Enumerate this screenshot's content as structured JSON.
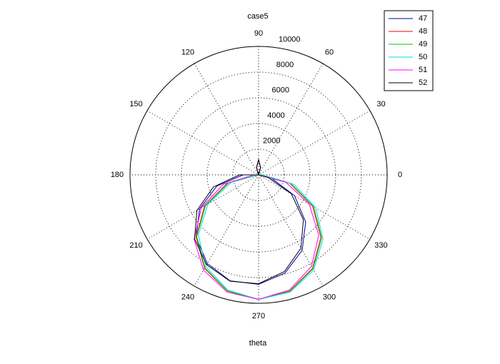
{
  "chart_data": {
    "type": "polar",
    "title": "case5",
    "xlabel": "theta",
    "theta": [
      0,
      15,
      30,
      45,
      60,
      75,
      90,
      105,
      120,
      135,
      150,
      165,
      180,
      195,
      210,
      225,
      240,
      255,
      270,
      285,
      300,
      315,
      330,
      345
    ],
    "rlim": [
      0,
      10000
    ],
    "rticks": [
      2000,
      4000,
      6000,
      8000,
      10000
    ],
    "thetaticks": [
      0,
      30,
      60,
      90,
      120,
      150,
      180,
      210,
      240,
      270,
      300,
      330
    ],
    "grid": true,
    "legend": "upper right",
    "series": [
      {
        "name": "47",
        "color": "#0000aa",
        "values": [
          0,
          0,
          0,
          0,
          0,
          600,
          1200,
          600,
          0,
          0,
          0,
          0,
          1200,
          3360,
          5300,
          6870,
          7970,
          8540,
          8520,
          7920,
          6780,
          5180,
          3220,
          1050
        ]
      },
      {
        "name": "48",
        "color": "#ff0000",
        "values": [
          0,
          0,
          0,
          0,
          0,
          600,
          1200,
          600,
          0,
          0,
          0,
          0,
          0,
          2510,
          4850,
          6860,
          8400,
          9370,
          9700,
          9370,
          8400,
          6860,
          4850,
          2510
        ]
      },
      {
        "name": "49",
        "color": "#00cc00",
        "values": [
          0,
          0,
          0,
          0,
          0,
          600,
          1200,
          600,
          0,
          0,
          0,
          0,
          0,
          2400,
          4750,
          6800,
          8350,
          9350,
          9700,
          9400,
          8450,
          6950,
          4950,
          2600
        ]
      },
      {
        "name": "50",
        "color": "#00dddd",
        "values": [
          340,
          0,
          0,
          0,
          0,
          600,
          1200,
          600,
          0,
          0,
          0,
          0,
          0,
          2180,
          4550,
          6620,
          8230,
          9280,
          9690,
          9450,
          8560,
          7090,
          5140,
          2840
        ]
      },
      {
        "name": "51",
        "color": "#ff00ff",
        "values": [
          0,
          0,
          0,
          0,
          0,
          600,
          1200,
          600,
          0,
          0,
          0,
          0,
          340,
          2840,
          5140,
          7090,
          8560,
          9450,
          9690,
          9280,
          8230,
          6620,
          4550,
          2180
        ]
      },
      {
        "name": "52",
        "color": "#000000",
        "values": [
          0,
          0,
          0,
          0,
          0,
          600,
          1200,
          600,
          0,
          0,
          0,
          0,
          1490,
          3630,
          5530,
          7040,
          8080,
          8570,
          8470,
          7790,
          6590,
          4930,
          2940,
          750
        ]
      }
    ]
  }
}
